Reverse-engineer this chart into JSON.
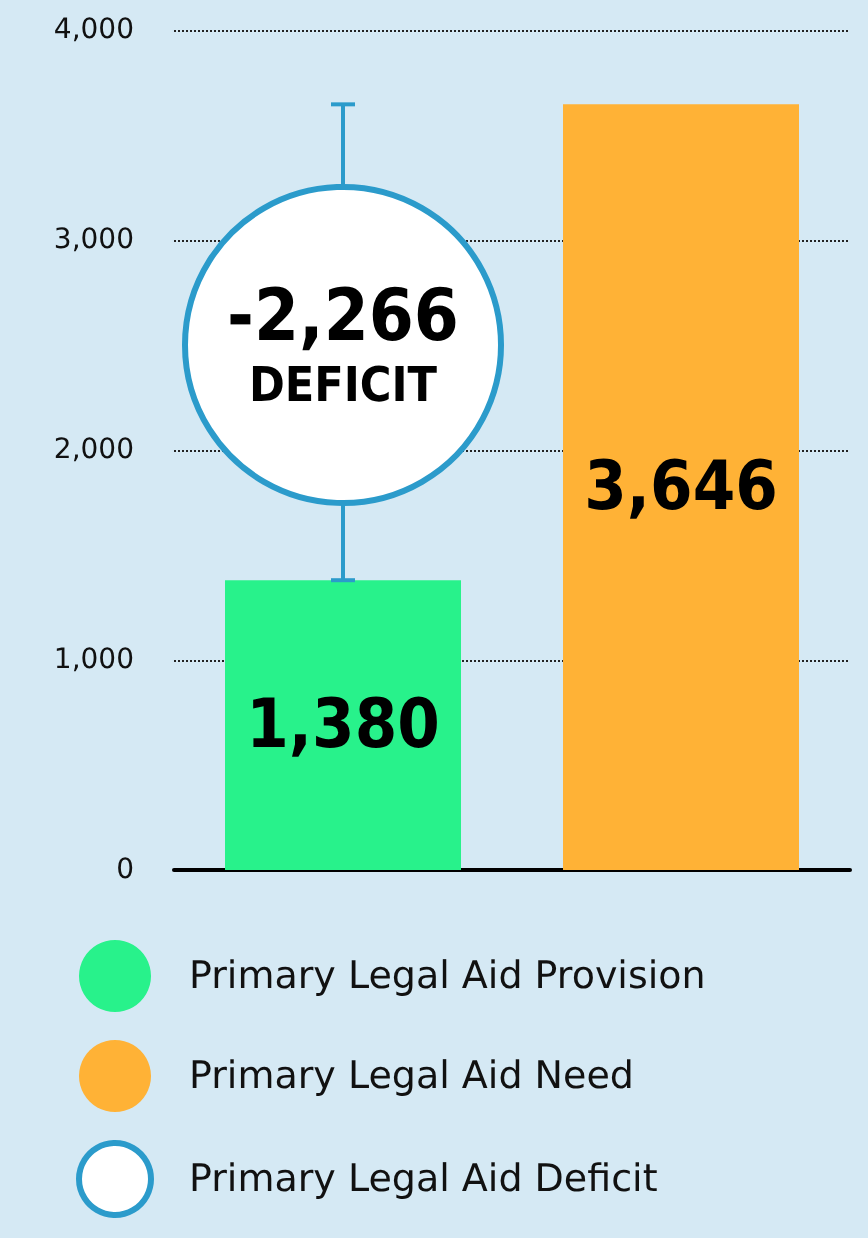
{
  "chart_data": {
    "type": "bar",
    "categories": [
      null,
      null
    ],
    "series": [
      {
        "name": "Primary Legal Aid Provision",
        "color": "#28f28b",
        "values": [
          1380,
          null
        ]
      },
      {
        "name": "Primary Legal Aid Need",
        "color": "#ffb236",
        "values": [
          null,
          3646
        ]
      },
      {
        "name": "Primary Legal Aid Deficit",
        "type": "scatter",
        "color": "#ffffff",
        "values": [
          2500,
          null
        ],
        "errors": [
          [
            1380,
            3646
          ],
          null
        ]
      }
    ],
    "value_labels": [
      [
        "1,380",
        null
      ],
      [
        null,
        "3,646"
      ]
    ],
    "annotations": [
      "-2,266",
      "DEFICIT"
    ],
    "ylim": [
      0,
      4000
    ],
    "yticks": [
      0,
      {
        "value": 1000,
        "label": "1,000"
      },
      {
        "value": 2000,
        "label": "2,000"
      },
      {
        "value": 3000,
        "label": "3,000"
      },
      {
        "value": 4000,
        "label": "4,000"
      }
    ],
    "grid": "y",
    "legend": "bottom"
  }
}
